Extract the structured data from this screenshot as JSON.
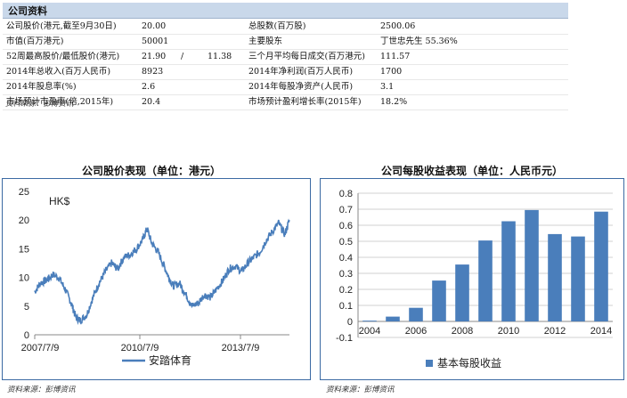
{
  "header": {
    "title": "公司资料"
  },
  "table": {
    "rows": [
      {
        "l1": "公司股价(港元,截至9月30日)",
        "v1": "20.00",
        "sep": "",
        "v1b": "",
        "l2": "总股数(百万股)",
        "v2": "2500.06"
      },
      {
        "l1": "市值(百万港元)",
        "v1": "50001",
        "sep": "",
        "v1b": "",
        "l2": "主要股东",
        "v2": "丁世忠先生 55.36%"
      },
      {
        "l1": "52周最高股价/最低股价(港元)",
        "v1": "21.90",
        "sep": "/",
        "v1b": "11.38",
        "l2": "三个月平均每日成交(百万港元)",
        "v2": "111.57"
      },
      {
        "l1": "2014年总收入(百万人民币)",
        "v1": "8923",
        "sep": "",
        "v1b": "",
        "l2": "2014年净利润(百万人民币)",
        "v2": "1700"
      },
      {
        "l1": "2014年股息率(%)",
        "v1": "2.6",
        "sep": "",
        "v1b": "",
        "l2": "2014年每股净资产(人民币)",
        "v2": "3.1"
      },
      {
        "l1": "市场预计市盈率(倍,2015年)",
        "v1": "20.4",
        "sep": "",
        "v1b": "",
        "l2": "市场预计盈利增长率(2015年)",
        "v2": "18.2%"
      }
    ],
    "source": "资料来源：彭博资讯"
  },
  "left_chart": {
    "title": "公司股价表现（单位：港元）",
    "source": "资料来源：彭博资讯"
  },
  "right_chart": {
    "title": "公司每股收益表现（单位：人民币元）",
    "source": "资料来源：彭博资讯"
  },
  "chart_data": [
    {
      "type": "line",
      "title": "公司股价表现（单位：港元）",
      "unit_label": "HK$",
      "ylim": [
        0,
        25
      ],
      "yticks": [
        "0",
        "5",
        "10",
        "15",
        "20",
        "25"
      ],
      "xticks": [
        "2007/7/9",
        "2010/7/9",
        "2013/7/9"
      ],
      "series": [
        {
          "name": "安踏体育",
          "color": "#4a7ebb",
          "x": [
            2007.52,
            2007.7,
            2007.9,
            2008.1,
            2008.3,
            2008.5,
            2008.7,
            2008.85,
            2009.0,
            2009.2,
            2009.4,
            2009.6,
            2009.8,
            2010.0,
            2010.2,
            2010.4,
            2010.6,
            2010.8,
            2011.0,
            2011.15,
            2011.3,
            2011.5,
            2011.7,
            2011.85,
            2012.0,
            2012.2,
            2012.4,
            2012.6,
            2012.8,
            2013.0,
            2013.2,
            2013.4,
            2013.6,
            2013.8,
            2014.0,
            2014.2,
            2014.4,
            2014.6,
            2014.8,
            2015.0,
            2015.2,
            2015.4,
            2015.6,
            2015.75
          ],
          "y": [
            7.5,
            9.0,
            9.5,
            10.5,
            10.0,
            8.0,
            5.5,
            3.0,
            2.5,
            3.5,
            6.5,
            9.0,
            11.0,
            12.5,
            11.5,
            13.5,
            14.0,
            15.0,
            16.5,
            18.5,
            16.0,
            14.5,
            12.0,
            10.0,
            8.5,
            9.0,
            7.0,
            5.0,
            5.5,
            7.0,
            6.5,
            8.0,
            9.5,
            11.5,
            12.0,
            11.0,
            12.5,
            13.5,
            14.5,
            16.5,
            18.0,
            19.5,
            17.5,
            20.0
          ]
        }
      ]
    },
    {
      "type": "bar",
      "title": "公司每股收益表现（单位：人民币元）",
      "ylim": [
        -0.1,
        0.8
      ],
      "yticks": [
        "-0.1",
        "0",
        "0.1",
        "0.2",
        "0.3",
        "0.4",
        "0.5",
        "0.6",
        "0.7",
        "0.8"
      ],
      "xticks": [
        "2004",
        "2006",
        "2008",
        "2010",
        "2012",
        "2014"
      ],
      "categories": [
        "2004",
        "2005",
        "2006",
        "2007",
        "2008",
        "2009",
        "2010",
        "2011",
        "2012",
        "2013",
        "2014"
      ],
      "series": [
        {
          "name": "基本每股收益",
          "color": "#4a7ebb",
          "values": [
            0.005,
            0.03,
            0.085,
            0.255,
            0.355,
            0.505,
            0.625,
            0.695,
            0.545,
            0.53,
            0.685
          ]
        }
      ]
    }
  ]
}
